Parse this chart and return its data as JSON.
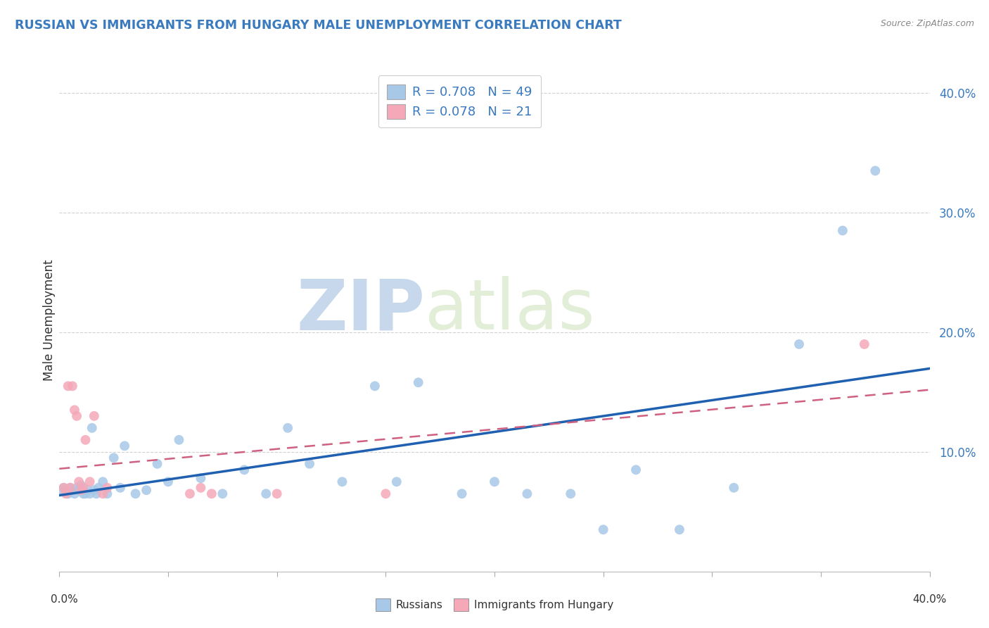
{
  "title": "RUSSIAN VS IMMIGRANTS FROM HUNGARY MALE UNEMPLOYMENT CORRELATION CHART",
  "source": "Source: ZipAtlas.com",
  "ylabel": "Male Unemployment",
  "legend_russians": "Russians",
  "legend_hungary": "Immigrants from Hungary",
  "r_russian": "R = 0.708",
  "n_russian": "N = 49",
  "r_hungary": "R = 0.078",
  "n_hungary": "N = 21",
  "russian_color": "#a8c8e8",
  "hungary_color": "#f4a8b8",
  "russian_line_color": "#2060b0",
  "hungary_line_color": "#d06080",
  "background_color": "#ffffff",
  "watermark_zip": "ZIP",
  "watermark_atlas": "atlas",
  "xlim": [
    0.0,
    0.4
  ],
  "ylim": [
    0.0,
    0.42
  ],
  "yticks": [
    0.1,
    0.2,
    0.3,
    0.4
  ],
  "ytick_labels": [
    "10.0%",
    "20.0%",
    "30.0%",
    "40.0%"
  ],
  "russian_x": [
    0.001,
    0.002,
    0.003,
    0.004,
    0.005,
    0.006,
    0.007,
    0.008,
    0.009,
    0.01,
    0.011,
    0.012,
    0.013,
    0.014,
    0.015,
    0.016,
    0.017,
    0.018,
    0.02,
    0.022,
    0.025,
    0.028,
    0.03,
    0.035,
    0.04,
    0.045,
    0.05,
    0.055,
    0.065,
    0.075,
    0.085,
    0.095,
    0.105,
    0.115,
    0.13,
    0.145,
    0.155,
    0.165,
    0.185,
    0.2,
    0.215,
    0.235,
    0.25,
    0.265,
    0.285,
    0.31,
    0.34,
    0.36,
    0.375
  ],
  "russian_y": [
    0.068,
    0.07,
    0.068,
    0.065,
    0.07,
    0.068,
    0.065,
    0.07,
    0.068,
    0.072,
    0.065,
    0.065,
    0.068,
    0.065,
    0.12,
    0.068,
    0.065,
    0.07,
    0.075,
    0.065,
    0.095,
    0.07,
    0.105,
    0.065,
    0.068,
    0.09,
    0.075,
    0.11,
    0.078,
    0.065,
    0.085,
    0.065,
    0.12,
    0.09,
    0.075,
    0.155,
    0.075,
    0.158,
    0.065,
    0.075,
    0.065,
    0.065,
    0.035,
    0.085,
    0.035,
    0.07,
    0.19,
    0.285,
    0.335
  ],
  "hungary_x": [
    0.002,
    0.003,
    0.004,
    0.005,
    0.006,
    0.007,
    0.008,
    0.009,
    0.01,
    0.011,
    0.012,
    0.014,
    0.016,
    0.02,
    0.022,
    0.06,
    0.065,
    0.07,
    0.1,
    0.15,
    0.37
  ],
  "hungary_y": [
    0.07,
    0.065,
    0.155,
    0.07,
    0.155,
    0.135,
    0.13,
    0.075,
    0.068,
    0.07,
    0.11,
    0.075,
    0.13,
    0.065,
    0.07,
    0.065,
    0.07,
    0.065,
    0.065,
    0.065,
    0.19
  ]
}
